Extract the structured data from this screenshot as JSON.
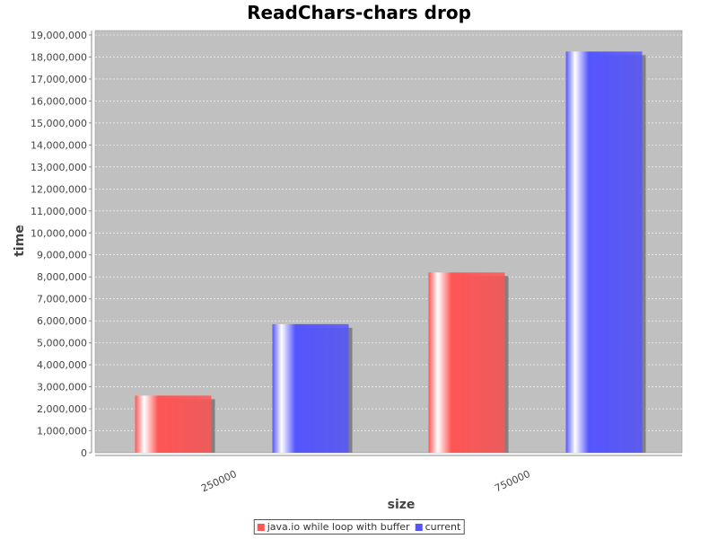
{
  "chart_data": {
    "type": "bar",
    "title": "ReadChars-chars drop",
    "xlabel": "size",
    "ylabel": "time",
    "categories": [
      "250000",
      "750000"
    ],
    "series": [
      {
        "name": "java.io while loop with buffer",
        "color": "#ff5555",
        "values": [
          2600000,
          8200000
        ]
      },
      {
        "name": "current",
        "color": "#5555ff",
        "values": [
          5850000,
          18250000
        ]
      }
    ],
    "ylim": [
      0,
      19000000
    ],
    "ytick_step": 1000000,
    "grid": true,
    "plot_background": "#c0c0c0",
    "legend_position": "bottom-center"
  }
}
